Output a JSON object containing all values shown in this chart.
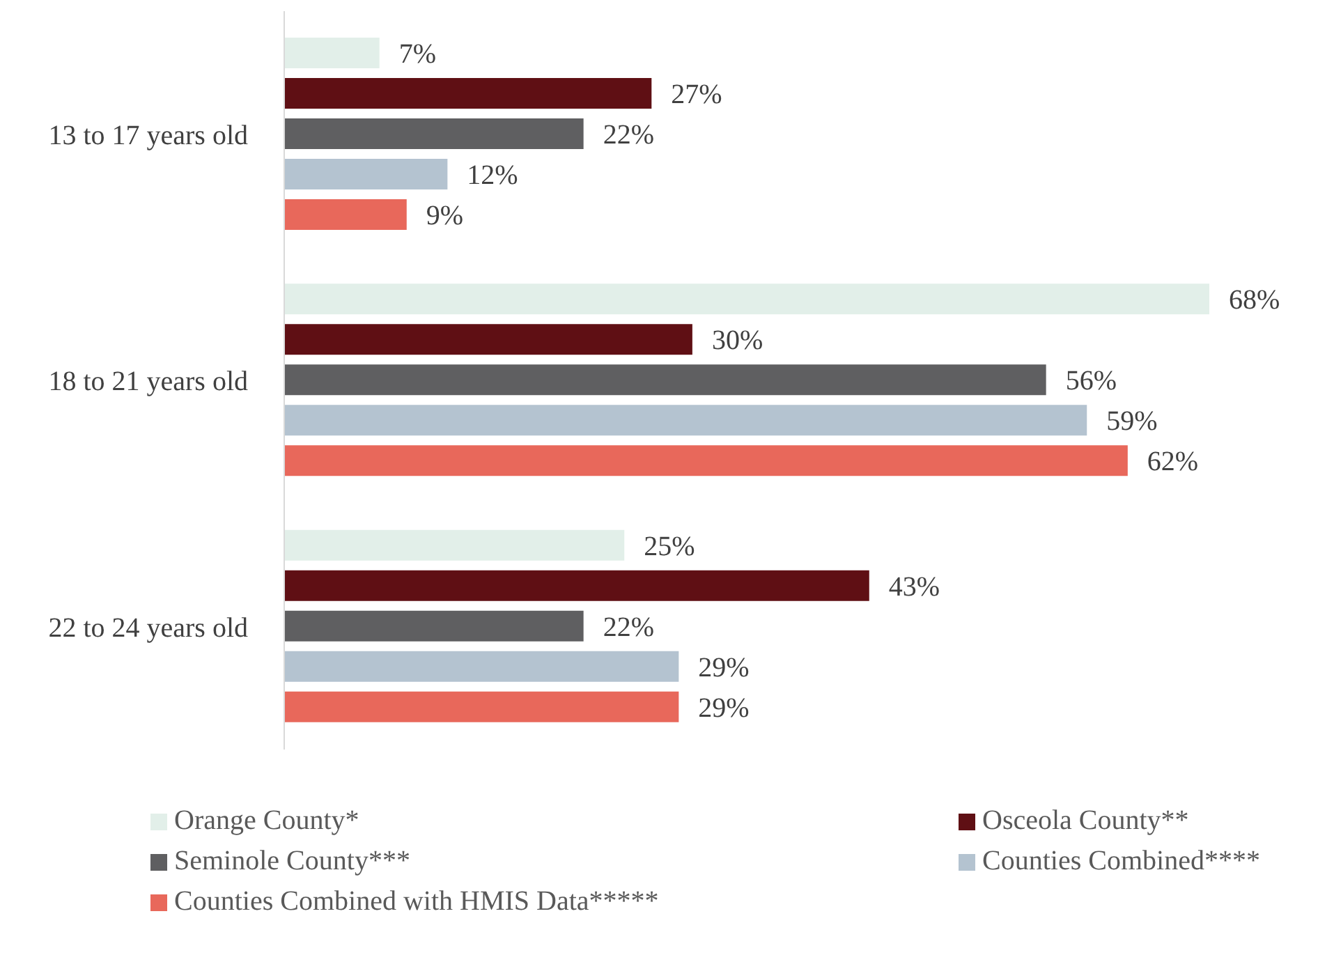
{
  "chart_data": {
    "type": "bar",
    "orientation": "horizontal",
    "tick_labels": "y",
    "legend": "bottom",
    "categories": [
      "13 to 17 years old",
      "18 to 21 years old",
      "22 to 24 years old"
    ],
    "series": [
      {
        "name": "Orange County*",
        "color": "#e2efe9",
        "values": [
          7,
          68,
          25
        ],
        "value_labels": [
          "7%",
          "68%",
          "25%"
        ]
      },
      {
        "name": "Osceola County**",
        "color": "#5f0f14",
        "values": [
          27,
          30,
          43
        ],
        "value_labels": [
          "27%",
          "30%",
          "43%"
        ]
      },
      {
        "name": "Seminole County***",
        "color": "#5f5f61",
        "values": [
          22,
          56,
          22
        ],
        "value_labels": [
          "22%",
          "56%",
          "22%"
        ]
      },
      {
        "name": "Counties Combined****",
        "color": "#b4c3d0",
        "values": [
          12,
          59,
          29
        ],
        "value_labels": [
          "12%",
          "59%",
          "29%"
        ]
      },
      {
        "name": "Counties Combined with HMIS Data*****",
        "color": "#e8685b",
        "values": [
          9,
          62,
          29
        ],
        "value_labels": [
          "9%",
          "62%",
          "29%"
        ]
      }
    ]
  }
}
